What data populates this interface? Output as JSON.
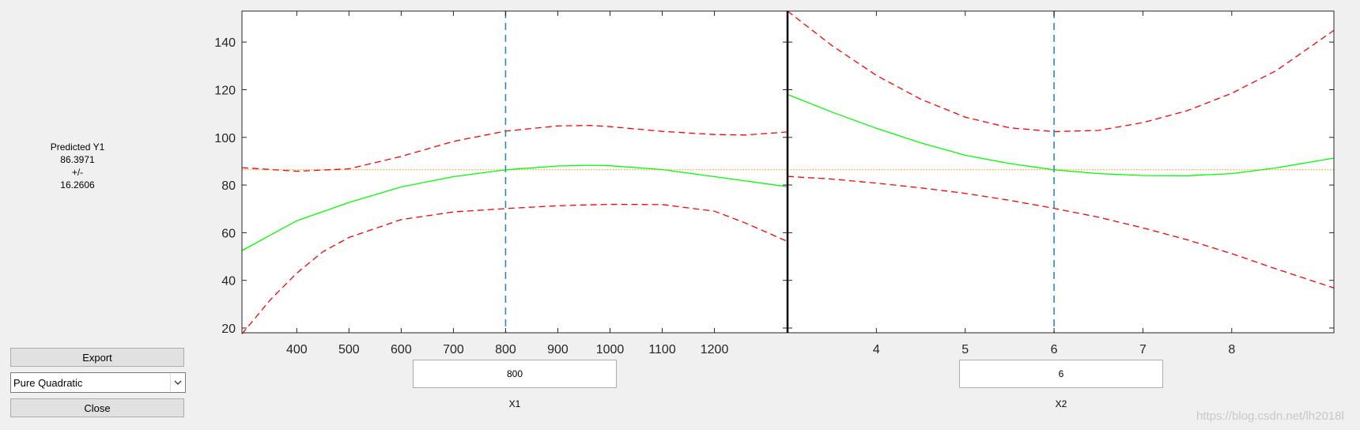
{
  "readout": {
    "title": "Predicted Y1",
    "value": "86.3971",
    "plusminus": "+/-",
    "interval": "16.2606"
  },
  "controls": {
    "export_label": "Export",
    "model_select": "Pure Quadratic",
    "close_label": "Close"
  },
  "x1": {
    "name": "X1",
    "value": "800"
  },
  "x2": {
    "name": "X2",
    "value": "6"
  },
  "watermark": "https://blog.csdn.net/lh2018l",
  "colors": {
    "prediction": "#00ff00",
    "bounds": "#ff0000",
    "reference": "#ff8c00",
    "crosshair": "#2e86c1"
  },
  "chart_data": [
    {
      "type": "line",
      "xlabel": "X1",
      "xlim": [
        295,
        1340
      ],
      "ylim": [
        18,
        153
      ],
      "xticks": [
        "400",
        "500",
        "600",
        "700",
        "800",
        "900",
        "1000",
        "1100",
        "1200"
      ],
      "yticks": [
        "20",
        "40",
        "60",
        "80",
        "100",
        "120",
        "140"
      ],
      "current_x": 800,
      "reference_y": 86.3971,
      "series": [
        {
          "role": "prediction",
          "x": [
            295,
            400,
            500,
            600,
            700,
            800,
            900,
            960,
            1000,
            1100,
            1200,
            1340
          ],
          "y": [
            52.5,
            65,
            72.7,
            79.2,
            83.5,
            86.4,
            88.0,
            88.3,
            88.1,
            86.5,
            83.5,
            79.3
          ]
        },
        {
          "role": "upper",
          "x": [
            295,
            400,
            500,
            600,
            700,
            800,
            900,
            960,
            1000,
            1100,
            1200,
            1260,
            1340
          ],
          "y": [
            87.3,
            85.8,
            86.8,
            92,
            98.3,
            102.6,
            104.8,
            105.0,
            104.5,
            102.5,
            101.2,
            101.0,
            102.3
          ]
        },
        {
          "role": "lower",
          "x": [
            295,
            350,
            400,
            450,
            500,
            600,
            700,
            800,
            900,
            1000,
            1100,
            1200,
            1260,
            1340
          ],
          "y": [
            17.5,
            32,
            43,
            52,
            58,
            65.5,
            68.7,
            70.1,
            71.3,
            71.9,
            71.8,
            69,
            64,
            56.3
          ]
        }
      ]
    },
    {
      "type": "line",
      "xlabel": "X2",
      "xlim": [
        3,
        9.15
      ],
      "ylim": [
        18,
        153
      ],
      "xticks": [
        "4",
        "5",
        "6",
        "7",
        "8"
      ],
      "yticks": [],
      "current_x": 6,
      "reference_y": 86.3971,
      "series": [
        {
          "role": "prediction",
          "x": [
            3,
            3.5,
            4,
            4.5,
            5,
            5.5,
            6,
            6.5,
            7,
            7.5,
            8,
            8.5,
            9.15
          ],
          "y": [
            118,
            110.6,
            103.8,
            97.7,
            92.5,
            89,
            86.4,
            84.8,
            84.0,
            83.9,
            84.8,
            87.2,
            91.3
          ]
        },
        {
          "role": "upper",
          "x": [
            3,
            3.5,
            4,
            4.5,
            5,
            5.5,
            6,
            6.5,
            7,
            7.5,
            8,
            8.5,
            9.15
          ],
          "y": [
            153,
            138.5,
            126,
            116,
            108.5,
            104,
            102.4,
            102.9,
            106.2,
            111.2,
            118.5,
            128,
            144.9
          ]
        },
        {
          "role": "lower",
          "x": [
            3,
            3.5,
            4,
            4.5,
            5,
            5.5,
            6,
            6.5,
            7,
            7.5,
            8,
            8.5,
            9.15
          ],
          "y": [
            83.6,
            82.5,
            80.8,
            78.8,
            76.5,
            73.6,
            70.2,
            66.5,
            62,
            57,
            51.2,
            44.8,
            36.8
          ]
        }
      ]
    }
  ]
}
